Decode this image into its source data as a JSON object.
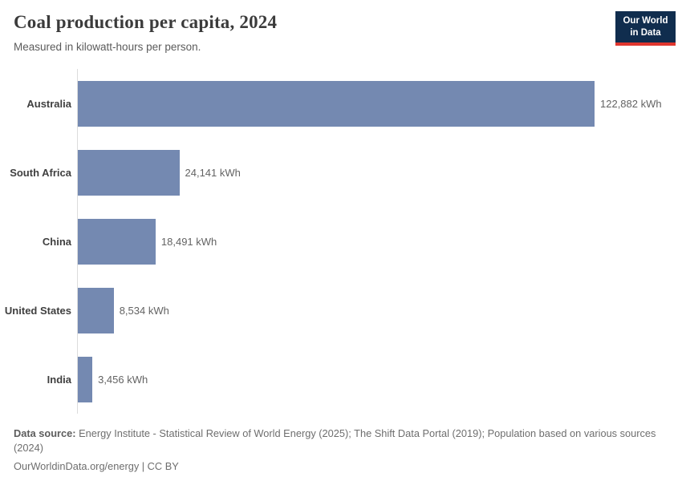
{
  "header": {
    "title": "Coal production per capita, 2024",
    "subtitle": "Measured in kilowatt-hours per person.",
    "logo": {
      "line1": "Our World",
      "line2": "in Data"
    }
  },
  "chart_data": {
    "type": "bar",
    "orientation": "horizontal",
    "title": "Coal production per capita, 2024",
    "subtitle": "Measured in kilowatt-hours per person.",
    "unit": "kWh",
    "categories": [
      "Australia",
      "South Africa",
      "China",
      "United States",
      "India"
    ],
    "values": [
      122882,
      24141,
      18491,
      8534,
      3456
    ],
    "value_labels": [
      "122,882 kWh",
      "24,141 kWh",
      "18,491 kWh",
      "8,534 kWh",
      "3,456 kWh"
    ],
    "xlim": [
      0,
      122882
    ],
    "grid": false,
    "legend": "none",
    "bar_color": "#7489b1"
  },
  "footer": {
    "source_label": "Data source:",
    "source_text": " Energy Institute - Statistical Review of World Energy (2025); The Shift Data Portal (2019); Population based on various sources (2024)",
    "link_text": "OurWorldinData.org/energy | CC BY"
  },
  "colors": {
    "bar": "#7489b1",
    "axis_line": "#dcdcdc",
    "logo_navy": "#102d4e",
    "logo_red": "#e0362e",
    "title_text": "#3b3b3b",
    "subtitle_text": "#5b5b5b",
    "value_text": "#636363"
  }
}
